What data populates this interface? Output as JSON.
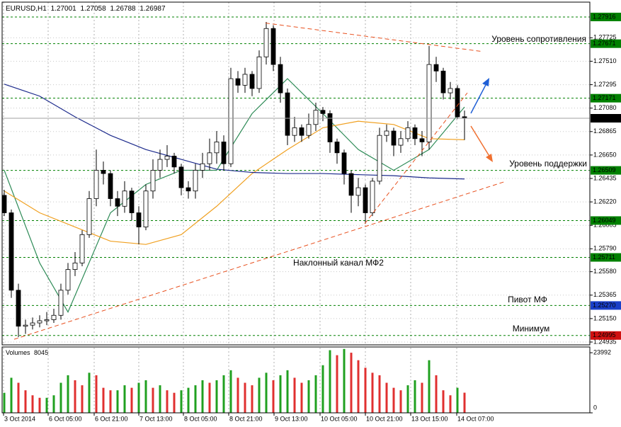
{
  "chart_data": [
    {
      "type": "candlestick",
      "title": "EURUSD,H1",
      "categories": [
        null,
        null,
        null,
        null,
        null,
        null,
        null,
        null,
        null,
        null,
        null,
        null,
        null,
        null,
        null,
        null,
        null,
        null,
        null,
        null,
        null,
        null,
        null,
        null,
        null,
        null,
        null,
        null,
        null,
        null,
        null,
        null,
        null,
        null,
        null,
        null,
        null,
        null,
        null,
        null,
        null,
        null,
        null,
        null,
        null,
        null,
        null,
        null,
        null,
        null,
        null,
        null,
        null,
        null,
        null,
        null,
        null,
        null,
        null,
        null,
        null,
        null,
        null,
        null,
        null,
        null
      ],
      "open": [
        1.2628,
        1.2612,
        1.2541,
        1.2508,
        1.2509,
        1.2511,
        1.2513,
        1.2514,
        1.2518,
        1.2541,
        1.256,
        1.2566,
        1.2592,
        1.2625,
        1.2651,
        1.2648,
        1.2625,
        1.2618,
        1.2632,
        1.2612,
        1.2599,
        1.2632,
        1.2651,
        1.2661,
        1.2664,
        1.2654,
        1.2635,
        1.2632,
        1.2651,
        1.2657,
        1.2667,
        1.2677,
        1.2657,
        1.2735,
        1.2729,
        1.2739,
        1.2726,
        1.2755,
        1.2781,
        1.2748,
        1.2722,
        1.2683,
        1.269,
        1.2683,
        1.2693,
        1.2706,
        1.2703,
        1.2677,
        1.2667,
        1.2648,
        1.2628,
        1.2635,
        1.2612,
        1.2641,
        1.2683,
        1.2687,
        1.2674,
        1.268,
        1.269,
        1.268,
        1.2677,
        1.2748,
        1.2742,
        1.2722,
        1.2726,
        1.27001
      ],
      "high": [
        1.2633,
        1.2615,
        1.2547,
        1.2514,
        1.2516,
        1.2518,
        1.2521,
        1.2524,
        1.2547,
        1.2566,
        1.2576,
        1.2596,
        1.2632,
        1.267,
        1.2659,
        1.2651,
        1.2632,
        1.2641,
        1.2635,
        1.2618,
        1.2638,
        1.2661,
        1.267,
        1.2674,
        1.2667,
        1.2657,
        1.2641,
        1.2657,
        1.2667,
        1.268,
        1.2687,
        1.2683,
        1.2745,
        1.2742,
        1.2745,
        1.2742,
        1.2761,
        1.2787,
        1.2784,
        1.2755,
        1.2726,
        1.27,
        1.2693,
        1.2703,
        1.2713,
        1.2709,
        1.2706,
        1.268,
        1.267,
        1.2651,
        1.2644,
        1.2638,
        1.2644,
        1.269,
        1.2693,
        1.269,
        1.2687,
        1.2696,
        1.2693,
        1.2687,
        1.2765,
        1.2755,
        1.2745,
        1.2732,
        1.2729,
        1.27058
      ],
      "low": [
        1.2609,
        1.2534,
        1.2498,
        1.2501,
        1.2505,
        1.2507,
        1.2509,
        1.2511,
        1.2514,
        1.2537,
        1.2554,
        1.2563,
        1.2589,
        1.2618,
        1.2638,
        1.2618,
        1.2609,
        1.2612,
        1.2605,
        1.2583,
        1.2596,
        1.2625,
        1.2644,
        1.2654,
        1.2648,
        1.2628,
        1.2625,
        1.2625,
        1.2644,
        1.2651,
        1.2657,
        1.2651,
        1.2654,
        1.2722,
        1.2722,
        1.2719,
        1.2722,
        1.2748,
        1.2742,
        1.2713,
        1.2674,
        1.2677,
        1.2677,
        1.268,
        1.2687,
        1.2696,
        1.2667,
        1.2657,
        1.2638,
        1.2612,
        1.2618,
        1.2602,
        1.2609,
        1.2638,
        1.2677,
        1.2664,
        1.2667,
        1.2677,
        1.2674,
        1.2664,
        1.267,
        1.2732,
        1.2716,
        1.2716,
        1.2698,
        1.26788
      ],
      "close": [
        1.2612,
        1.2541,
        1.2508,
        1.2509,
        1.2511,
        1.2513,
        1.2514,
        1.2518,
        1.2541,
        1.256,
        1.2566,
        1.2592,
        1.2625,
        1.2651,
        1.2648,
        1.2625,
        1.2618,
        1.2632,
        1.2612,
        1.2599,
        1.2632,
        1.2651,
        1.2661,
        1.2664,
        1.2654,
        1.2635,
        1.2632,
        1.2651,
        1.2657,
        1.2667,
        1.2677,
        1.2657,
        1.2735,
        1.2729,
        1.2739,
        1.2726,
        1.2755,
        1.2781,
        1.2748,
        1.2722,
        1.2683,
        1.269,
        1.2683,
        1.2693,
        1.2706,
        1.2703,
        1.2677,
        1.2667,
        1.2648,
        1.2628,
        1.2635,
        1.2612,
        1.2641,
        1.2683,
        1.2687,
        1.2674,
        1.268,
        1.269,
        1.268,
        1.2677,
        1.2748,
        1.2742,
        1.2722,
        1.2726,
        1.27,
        1.26987
      ],
      "up_color": "#ffffff",
      "down_color": "#000000",
      "wick_color": "#000000",
      "series": [
        {
          "color": "#2e8b57",
          "x": [
            0,
            5,
            9,
            15,
            20,
            25,
            30,
            35,
            40,
            45,
            50,
            55,
            60,
            65
          ],
          "values": [
            1.2651,
            1.2566,
            1.2521,
            1.2612,
            1.2638,
            1.2651,
            1.2651,
            1.2703,
            1.2735,
            1.2703,
            1.267,
            1.2651,
            1.267,
            1.2709
          ]
        },
        {
          "color": "#f0a020",
          "x": [
            0,
            5,
            10,
            15,
            20,
            25,
            30,
            35,
            40,
            45,
            50,
            55,
            60,
            65
          ],
          "values": [
            1.2632,
            1.2612,
            1.2599,
            1.2586,
            1.2583,
            1.2592,
            1.2618,
            1.2648,
            1.267,
            1.269,
            1.2696,
            1.2693,
            1.268,
            1.2679
          ]
        },
        {
          "color": "#1c2a8c",
          "x": [
            0,
            5,
            10,
            15,
            20,
            25,
            30,
            35,
            40,
            45,
            50,
            55,
            60,
            65
          ],
          "values": [
            1.273,
            1.2719,
            1.27,
            1.2683,
            1.267,
            1.2661,
            1.2652,
            1.2649,
            1.2648,
            1.2648,
            1.2647,
            1.2646,
            1.2644,
            1.2643
          ]
        }
      ],
      "trendlines": [
        {
          "color": "#e8501e",
          "x": [
            36.9,
            67.4
          ],
          "values": [
            1.2786,
            1.276
          ]
        },
        {
          "color": "#e8501e",
          "x": [
            1.4,
            70.9
          ],
          "values": [
            1.2496,
            1.2641
          ]
        },
        {
          "color": "#e8501e",
          "x": [
            50.9,
            65.4
          ],
          "values": [
            1.2602,
            1.2722
          ]
        }
      ],
      "levels": [
        {
          "value": 1.27916,
          "color": "#008000"
        },
        {
          "value": 1.27671,
          "color": "#008000"
        },
        {
          "value": 1.27171,
          "color": "#008000"
        },
        {
          "value": 1.26509,
          "color": "#008000"
        },
        {
          "value": 1.26049,
          "color": "#008000"
        },
        {
          "value": 1.25711,
          "color": "#008000"
        },
        {
          "value": 1.2527,
          "label": "1.25270",
          "color": "#1a3fc8"
        },
        {
          "value": 1.24995,
          "color": "#d01010"
        }
      ],
      "current_price_color": "#000000",
      "annotations": [
        "Уровень сопротивления",
        "Уровень поддержки",
        "Наклонный канал МФ2",
        "Пивот МФ",
        "Минимум"
      ],
      "xlim": [
        -0.3,
        82.7
      ],
      "xticks": [
        {
          "value": -0.1,
          "label": "3 Oct 2014"
        },
        {
          "value": 6.2,
          "label": "6 Oct 05:00"
        },
        {
          "value": 12.7,
          "label": "6 Oct 21:00"
        },
        {
          "value": 19,
          "label": "7 Oct 13:00"
        },
        {
          "value": 25.3,
          "label": "8 Oct 05:00"
        },
        {
          "value": 31.7,
          "label": "8 Oct 21:00"
        },
        {
          "value": 38.1,
          "label": "9 Oct 13:00"
        },
        {
          "value": 44.6,
          "label": "10 Oct 05:00"
        },
        {
          "value": 51,
          "label": "10 Oct 21:00"
        },
        {
          "value": 57.4,
          "label": "13 Oct 15:00"
        },
        {
          "value": 63.9,
          "label": "14 Oct 07:00"
        }
      ],
      "ylim": [
        1.24909,
        1.28052
      ],
      "yticks": [
        1.27725,
        {
          "value": 1.2751,
          "label": "1.27510"
        },
        1.27295,
        {
          "value": 1.2708,
          "label": "1.27080"
        },
        1.26865,
        {
          "value": 1.2665,
          "label": "1.26650"
        },
        1.26435,
        {
          "value": 1.2622,
          "label": "1.26220"
        },
        1.26005,
        {
          "value": 1.2579,
          "label": "1.25790"
        },
        {
          "value": 1.2558,
          "label": "1.25580"
        },
        1.25365,
        {
          "value": 1.2515,
          "label": "1.25150"
        },
        1.24935
      ],
      "grid": true
    },
    {
      "type": "bar",
      "title": "Volumes",
      "values": [
        8000,
        14000,
        12000,
        9000,
        7000,
        6000,
        6000,
        7000,
        12000,
        15000,
        13000,
        11000,
        16000,
        15000,
        10000,
        9000,
        9000,
        11000,
        10000,
        12000,
        13000,
        10000,
        11000,
        9000,
        8000,
        9000,
        10000,
        11000,
        13000,
        12000,
        13000,
        15000,
        17000,
        14000,
        12000,
        11000,
        14000,
        16000,
        13000,
        15000,
        17000,
        14000,
        12000,
        13000,
        15000,
        19000,
        25000,
        23000,
        25500,
        24000,
        21000,
        18000,
        16000,
        15000,
        12000,
        10000,
        9000,
        11000,
        13000,
        12000,
        21000,
        15000,
        9000,
        7000,
        10000,
        8045
      ],
      "up_color": "#20a020",
      "down_color": "#e03030",
      "ylim": [
        0,
        26000
      ],
      "yticks": [
        0,
        23992
      ]
    }
  ]
}
